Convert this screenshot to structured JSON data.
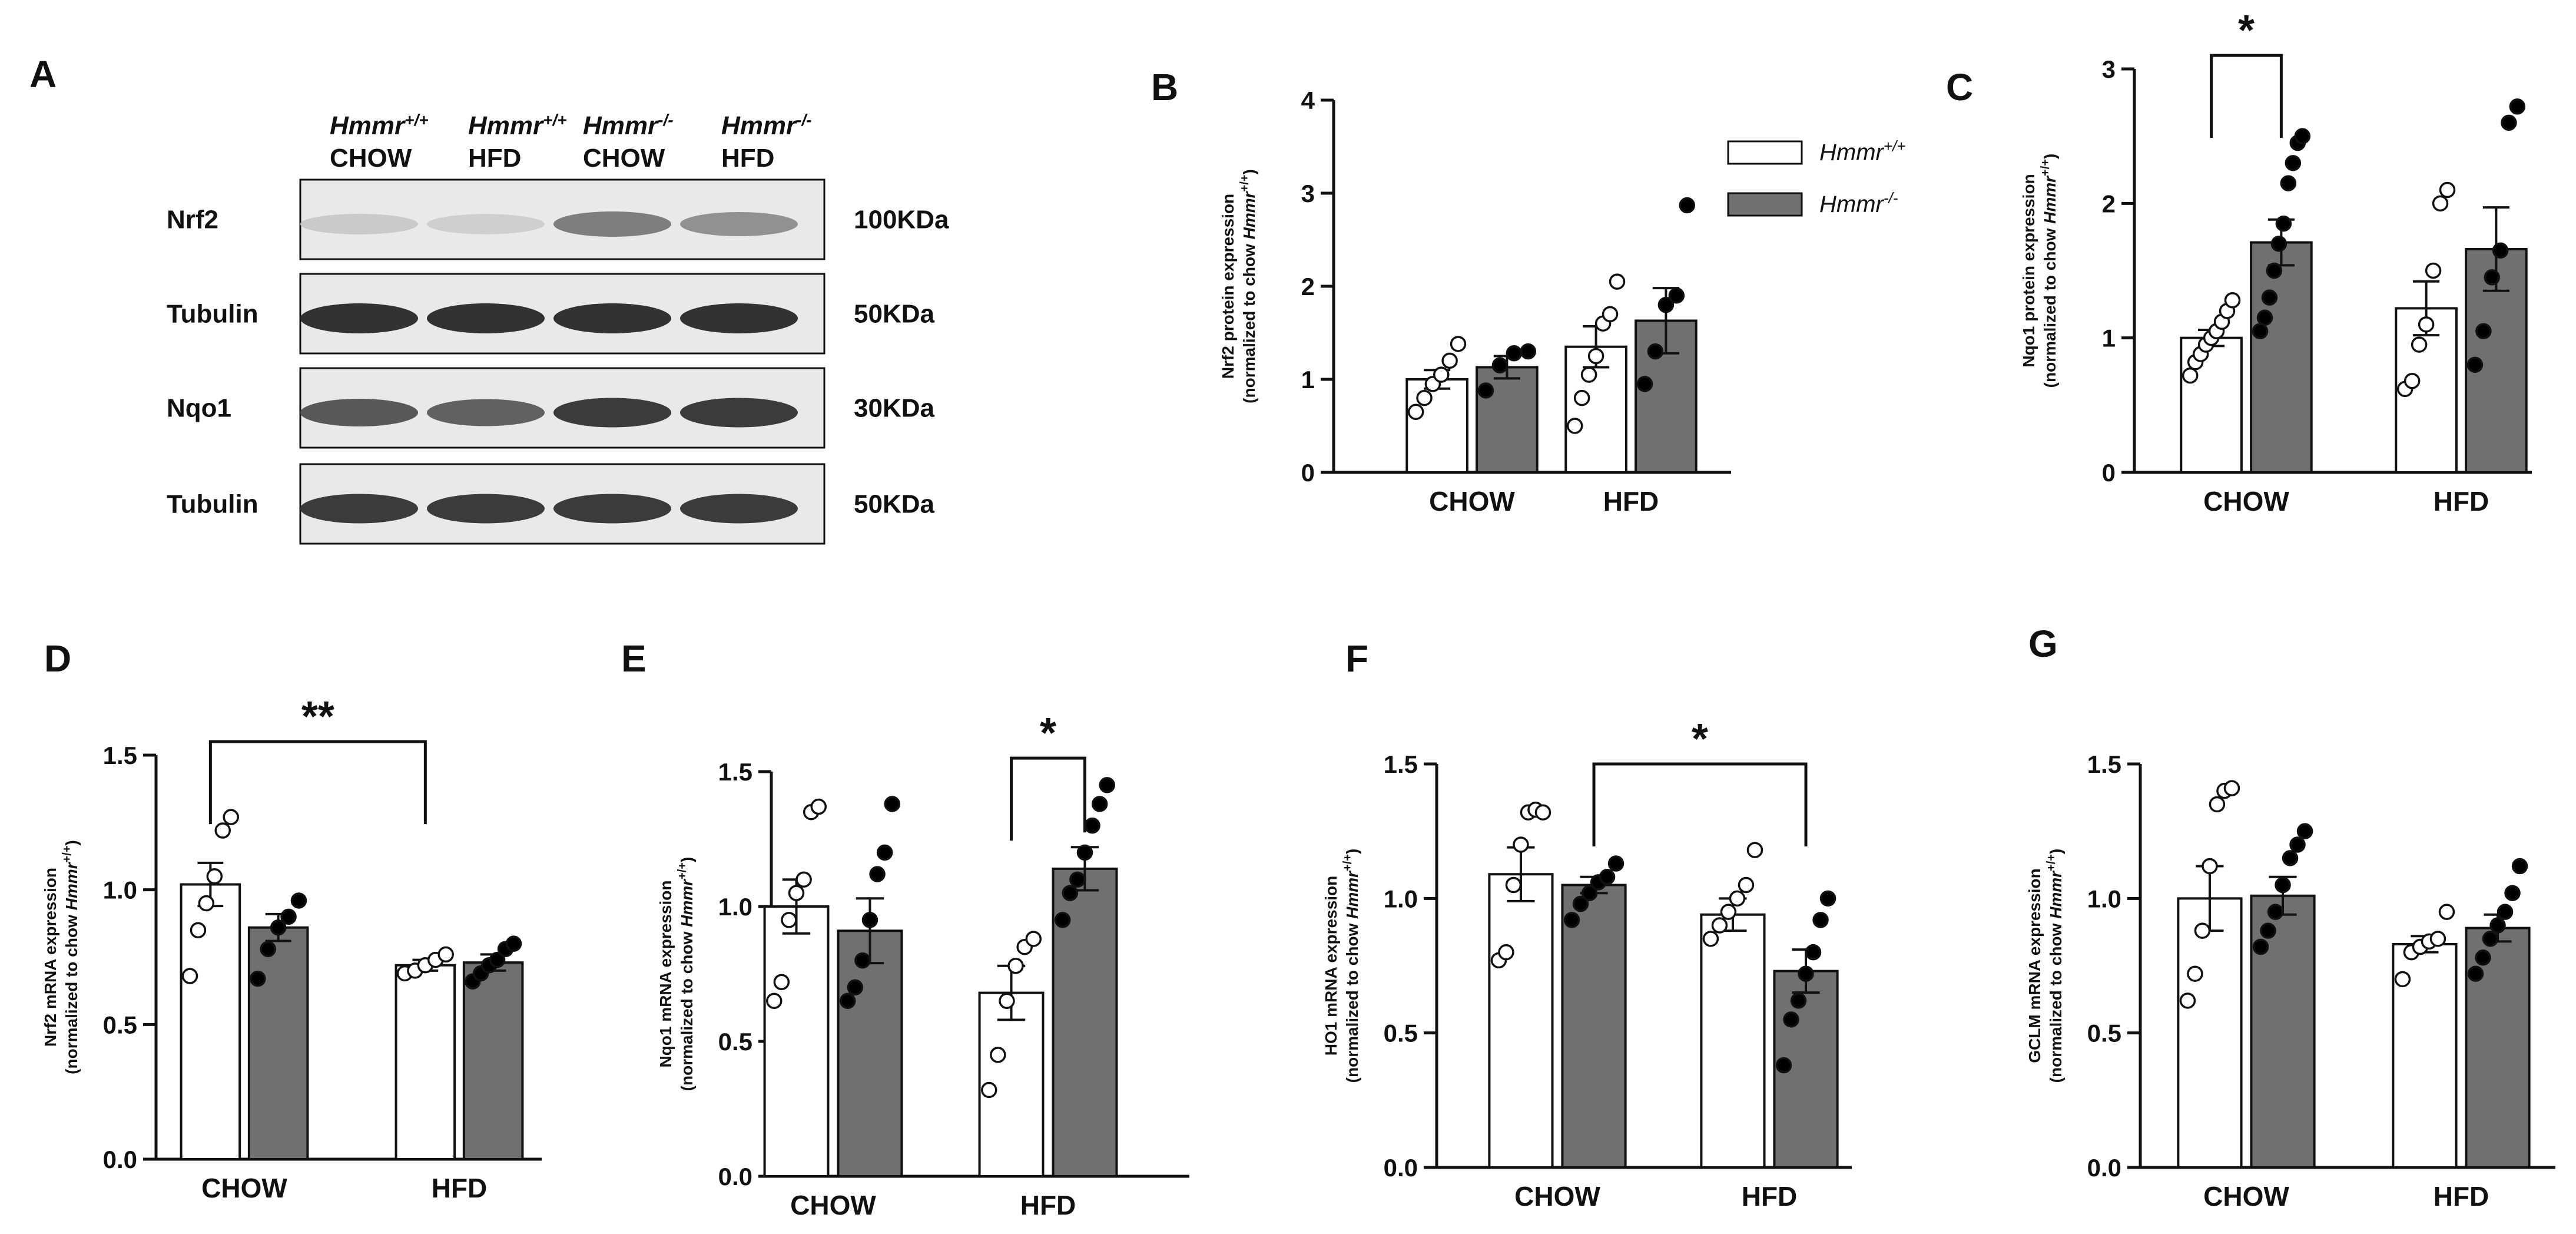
{
  "panel_a": {
    "label": "A",
    "groups": [
      {
        "genotype": "Hmmr",
        "sup": "+/+",
        "diet": "CHOW"
      },
      {
        "genotype": "Hmmr",
        "sup": "+/+",
        "diet": "HFD"
      },
      {
        "genotype": "Hmmr",
        "sup": "-/-",
        "diet": "CHOW"
      },
      {
        "genotype": "Hmmr",
        "sup": "-/-",
        "diet": "HFD"
      }
    ],
    "blots": [
      {
        "protein": "Nrf2",
        "size": "100KDa",
        "intensity": [
          0.15,
          0.12,
          0.55,
          0.45
        ]
      },
      {
        "protein": "Tubulin",
        "size": "50KDa",
        "intensity": [
          0.95,
          0.95,
          0.95,
          0.95
        ]
      },
      {
        "protein": "Nqo1",
        "size": "30KDa",
        "intensity": [
          0.75,
          0.7,
          0.9,
          0.9
        ]
      },
      {
        "protein": "Tubulin",
        "size": "50KDa",
        "intensity": [
          0.9,
          0.9,
          0.9,
          0.9
        ]
      }
    ]
  },
  "legend": [
    {
      "label": "Hmmr",
      "sup": "+/+",
      "color": "#ffffff"
    },
    {
      "label": "Hmmr",
      "sup": "-/-",
      "color": "#707070"
    }
  ],
  "colors": {
    "wt_fill": "#ffffff",
    "ko_fill": "#707070",
    "wt_point": "#ffffff",
    "ko_point": "#000000"
  },
  "chart_data": [
    {
      "panel": "B",
      "type": "bar",
      "ylabel_lines": [
        "Nrf2 protein expression",
        "(normalized to chow Hmmr+/+)"
      ],
      "categories": [
        "CHOW",
        "HFD"
      ],
      "ylim": [
        0,
        4
      ],
      "yticks": [
        "0",
        "1",
        "2",
        "3",
        "4"
      ],
      "tickvals": [
        0,
        1,
        2,
        3,
        4
      ],
      "series": [
        {
          "group": "wt",
          "values": [
            1.0,
            1.35
          ],
          "sem": [
            0.1,
            0.22
          ],
          "points": [
            [
              0.65,
              0.8,
              0.95,
              1.05,
              1.2,
              1.38
            ],
            [
              0.5,
              0.8,
              1.05,
              1.25,
              1.6,
              1.7,
              2.05
            ]
          ]
        },
        {
          "group": "ko",
          "values": [
            1.13,
            1.63
          ],
          "sem": [
            0.12,
            0.35
          ],
          "points": [
            [
              0.88,
              1.15,
              1.28,
              1.3
            ],
            [
              0.95,
              1.3,
              1.8,
              1.9,
              2.87
            ]
          ]
        }
      ],
      "significance": []
    },
    {
      "panel": "C",
      "type": "bar",
      "ylabel_lines": [
        "Nqo1 protein expression",
        "(normalized to chow Hmmr+/+)"
      ],
      "categories": [
        "CHOW",
        "HFD"
      ],
      "ylim": [
        0,
        3
      ],
      "yticks": [
        "0",
        "1",
        "2",
        "3"
      ],
      "tickvals": [
        0,
        1,
        2,
        3
      ],
      "series": [
        {
          "group": "wt",
          "values": [
            1.0,
            1.22
          ],
          "sem": [
            0.06,
            0.2
          ],
          "points": [
            [
              0.72,
              0.82,
              0.88,
              0.95,
              1.0,
              1.05,
              1.12,
              1.2,
              1.28
            ],
            [
              0.62,
              0.68,
              0.95,
              1.1,
              1.5,
              2.0,
              2.1
            ]
          ]
        },
        {
          "group": "ko",
          "values": [
            1.71,
            1.66
          ],
          "sem": [
            0.17,
            0.31
          ],
          "points": [
            [
              1.05,
              1.15,
              1.3,
              1.5,
              1.7,
              1.85,
              2.15,
              2.3,
              2.45,
              2.5
            ],
            [
              0.8,
              1.05,
              1.45,
              1.65,
              2.6,
              2.72
            ]
          ]
        }
      ],
      "significance": [
        {
          "from": [
            0,
            0
          ],
          "to": [
            0,
            1
          ],
          "label": "*",
          "y": 3.1
        }
      ]
    },
    {
      "panel": "D",
      "type": "bar",
      "ylabel_lines": [
        "Nrf2 mRNA expression",
        "(normalized to chow Hmmr+/+)"
      ],
      "categories": [
        "CHOW",
        "HFD"
      ],
      "ylim": [
        0,
        1.5
      ],
      "yticks": [
        "0.0",
        "0.5",
        "1.0",
        "1.5"
      ],
      "tickvals": [
        0,
        0.5,
        1.0,
        1.5
      ],
      "series": [
        {
          "group": "wt",
          "values": [
            1.02,
            0.72
          ],
          "sem": [
            0.08,
            0.02
          ],
          "points": [
            [
              0.68,
              0.85,
              0.95,
              1.05,
              1.22,
              1.27
            ],
            [
              0.69,
              0.7,
              0.72,
              0.74,
              0.76
            ]
          ]
        },
        {
          "group": "ko",
          "values": [
            0.86,
            0.73
          ],
          "sem": [
            0.05,
            0.03
          ],
          "points": [
            [
              0.67,
              0.78,
              0.86,
              0.9,
              0.96
            ],
            [
              0.66,
              0.69,
              0.72,
              0.74,
              0.78,
              0.8
            ]
          ]
        }
      ],
      "significance": [
        {
          "from": [
            0,
            0
          ],
          "to": [
            1,
            0
          ],
          "label": "**",
          "y": 1.55
        }
      ]
    },
    {
      "panel": "E",
      "type": "bar",
      "ylabel_lines": [
        "Nqo1 mRNA expression",
        "(normalized to chow Hmmr+/+)"
      ],
      "categories": [
        "CHOW",
        "HFD"
      ],
      "ylim": [
        0,
        1.5
      ],
      "yticks": [
        "0.0",
        "0.5",
        "1.0",
        "1.5"
      ],
      "tickvals": [
        0,
        0.5,
        1.0,
        1.5
      ],
      "series": [
        {
          "group": "wt",
          "values": [
            1.0,
            0.68
          ],
          "sem": [
            0.1,
            0.1
          ],
          "points": [
            [
              0.65,
              0.72,
              0.95,
              1.05,
              1.1,
              1.35,
              1.37
            ],
            [
              0.32,
              0.45,
              0.65,
              0.78,
              0.85,
              0.88
            ]
          ]
        },
        {
          "group": "ko",
          "values": [
            0.91,
            1.14
          ],
          "sem": [
            0.12,
            0.08
          ],
          "points": [
            [
              0.65,
              0.7,
              0.8,
              0.95,
              1.12,
              1.2,
              1.38
            ],
            [
              0.95,
              1.05,
              1.1,
              1.2,
              1.3,
              1.38,
              1.45
            ]
          ]
        }
      ],
      "significance": [
        {
          "from": [
            1,
            0
          ],
          "to": [
            1,
            1
          ],
          "label": "*",
          "y": 1.55
        }
      ]
    },
    {
      "panel": "F",
      "type": "bar",
      "ylabel_lines": [
        "HO1 mRNA expression",
        "(normalized to chow Hmmr+/+)"
      ],
      "categories": [
        "CHOW",
        "HFD"
      ],
      "ylim": [
        0,
        1.5
      ],
      "yticks": [
        "0.0",
        "0.5",
        "1.0",
        "1.5"
      ],
      "tickvals": [
        0,
        0.5,
        1.0,
        1.5
      ],
      "series": [
        {
          "group": "wt",
          "values": [
            1.09,
            0.94
          ],
          "sem": [
            0.1,
            0.06
          ],
          "points": [
            [
              0.77,
              0.8,
              1.05,
              1.2,
              1.32,
              1.33,
              1.32
            ],
            [
              0.85,
              0.9,
              0.95,
              1.0,
              1.05,
              1.18
            ]
          ]
        },
        {
          "group": "ko",
          "values": [
            1.05,
            0.73
          ],
          "sem": [
            0.03,
            0.08
          ],
          "points": [
            [
              0.92,
              0.98,
              1.02,
              1.06,
              1.08,
              1.13
            ],
            [
              0.38,
              0.55,
              0.62,
              0.72,
              0.8,
              0.92,
              1.0
            ]
          ]
        }
      ],
      "significance": [
        {
          "from": [
            0,
            1
          ],
          "to": [
            1,
            1
          ],
          "label": "*",
          "y": 1.5
        }
      ]
    },
    {
      "panel": "G",
      "type": "bar",
      "ylabel_lines": [
        "GCLM mRNA expression",
        "(normalized to chow Hmmr+/+)"
      ],
      "categories": [
        "CHOW",
        "HFD"
      ],
      "ylim": [
        0,
        1.5
      ],
      "yticks": [
        "0.0",
        "0.5",
        "1.0",
        "1.5"
      ],
      "tickvals": [
        0,
        0.5,
        1.0,
        1.5
      ],
      "series": [
        {
          "group": "wt",
          "values": [
            1.0,
            0.83
          ],
          "sem": [
            0.12,
            0.03
          ],
          "points": [
            [
              0.62,
              0.72,
              0.88,
              1.12,
              1.35,
              1.4,
              1.41
            ],
            [
              0.7,
              0.8,
              0.82,
              0.84,
              0.85,
              0.95
            ]
          ]
        },
        {
          "group": "ko",
          "values": [
            1.01,
            0.89
          ],
          "sem": [
            0.07,
            0.05
          ],
          "points": [
            [
              0.82,
              0.88,
              0.95,
              1.05,
              1.15,
              1.2,
              1.25
            ],
            [
              0.72,
              0.78,
              0.85,
              0.9,
              0.95,
              1.02,
              1.12
            ]
          ]
        }
      ],
      "significance": []
    }
  ]
}
